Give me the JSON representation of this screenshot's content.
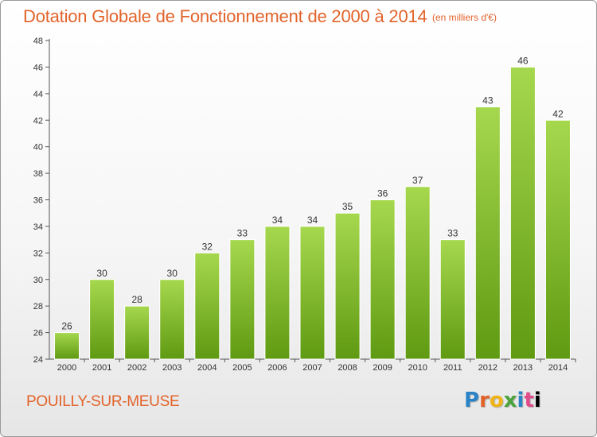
{
  "header": {
    "title": "Dotation Globale de Fonctionnement de 2000 à 2014",
    "unit": "(en milliers d'€)"
  },
  "footer": {
    "city": "POUILLY-SUR-MEUSE",
    "logo_text": "Proxiti"
  },
  "colors": {
    "title": "#e2632a",
    "bar_top": "#a6d84e",
    "bar_bottom": "#5f9a12"
  },
  "chart_data": {
    "type": "bar",
    "title": "Dotation Globale de Fonctionnement de 2000 à 2014",
    "subtitle": "(en milliers d'€)",
    "xlabel": "",
    "ylabel": "",
    "categories": [
      "2000",
      "2001",
      "2002",
      "2003",
      "2004",
      "2005",
      "2006",
      "2007",
      "2008",
      "2009",
      "2010",
      "2011",
      "2012",
      "2013",
      "2014"
    ],
    "values": [
      26,
      30,
      28,
      30,
      32,
      33,
      34,
      34,
      35,
      36,
      37,
      33,
      43,
      46,
      42
    ],
    "ylim": [
      24,
      48
    ],
    "yticks": [
      24,
      26,
      28,
      30,
      32,
      34,
      36,
      38,
      40,
      42,
      44,
      46,
      48
    ],
    "grid": false,
    "data_labels": true
  }
}
